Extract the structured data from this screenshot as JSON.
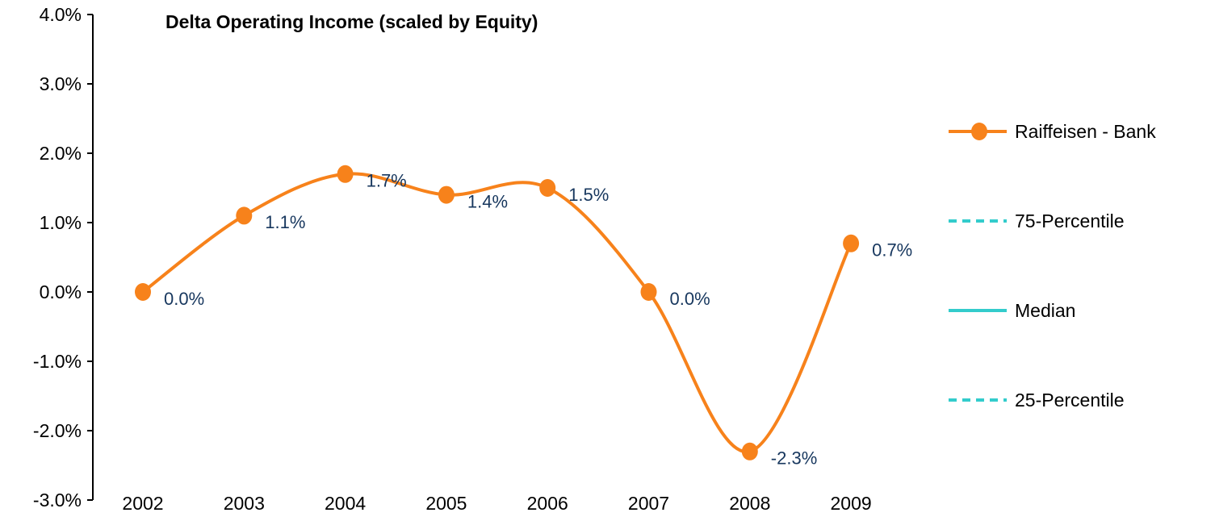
{
  "chart_data": {
    "type": "line",
    "title": "Delta Operating Income (scaled by Equity)",
    "categories": [
      "2002",
      "2003",
      "2004",
      "2005",
      "2006",
      "2007",
      "2008",
      "2009"
    ],
    "series": [
      {
        "name": "Raiffeisen - Bank",
        "color": "#f7821b",
        "style": "solid",
        "marker": true,
        "values": [
          0.0,
          1.1,
          1.7,
          1.4,
          1.5,
          0.0,
          -2.3,
          0.7
        ],
        "value_labels": [
          "0.0%",
          "1.1%",
          "1.7%",
          "1.4%",
          "1.5%",
          "0.0%",
          "-2.3%",
          "0.7%"
        ]
      },
      {
        "name": "75-Percentile",
        "color": "#33cccc",
        "style": "dashed",
        "marker": false,
        "values": [
          null,
          null,
          null,
          null,
          null,
          null,
          null,
          null
        ]
      },
      {
        "name": "Median",
        "color": "#33cccc",
        "style": "solid",
        "marker": false,
        "values": [
          null,
          null,
          null,
          null,
          null,
          null,
          null,
          null
        ]
      },
      {
        "name": "25-Percentile",
        "color": "#33cccc",
        "style": "dashed",
        "marker": false,
        "values": [
          null,
          null,
          null,
          null,
          null,
          null,
          null,
          null
        ]
      }
    ],
    "ylim": [
      -3,
      4
    ],
    "yticks": [
      {
        "value": -3,
        "label": "-3.0%"
      },
      {
        "value": -2,
        "label": "-2.0%"
      },
      {
        "value": -1,
        "label": "-1.0%"
      },
      {
        "value": 0,
        "label": "0.0%"
      },
      {
        "value": 1,
        "label": "1.0%"
      },
      {
        "value": 2,
        "label": "2.0%"
      },
      {
        "value": 3,
        "label": "3.0%"
      },
      {
        "value": 4,
        "label": "4.0%"
      }
    ],
    "label_color": "#17375e",
    "legend": "right"
  }
}
